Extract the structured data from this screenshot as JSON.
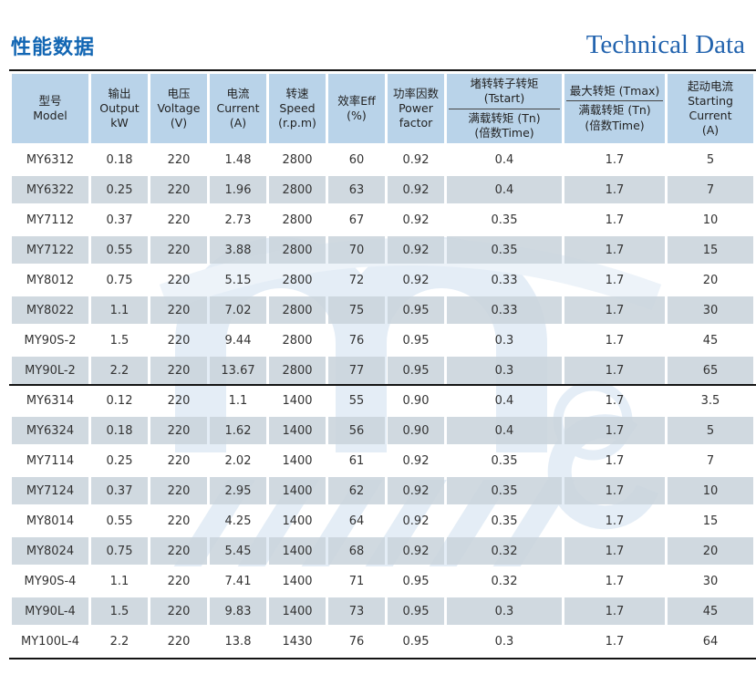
{
  "page": {
    "title_zh": "性能数据",
    "title_en": "Technical Data"
  },
  "colors": {
    "title_blue_zh": "#1266b3",
    "title_blue_en": "#2263ae",
    "header_bg": "#b9d3e9",
    "row_alt_bg": "#c9d4dc",
    "border_dark": "#141414",
    "watermark_blue": "#dce8f4"
  },
  "table": {
    "headers": [
      {
        "lines": [
          "型号",
          "Model"
        ]
      },
      {
        "lines": [
          "输出",
          "Output",
          "kW"
        ]
      },
      {
        "lines": [
          "电压",
          "Voltage",
          "(V)"
        ]
      },
      {
        "lines": [
          "电流",
          "Current",
          "(A)"
        ]
      },
      {
        "lines": [
          "转速",
          "Speed",
          "(r.p.m)"
        ]
      },
      {
        "lines": [
          "效率Eff",
          "(%)"
        ]
      },
      {
        "lines": [
          "功率因数",
          "Power",
          "factor"
        ]
      },
      {
        "fraction": {
          "numerator": "堵转转子转矩 (Tstart)",
          "denominator": "满载转矩 (Tn)",
          "note": "(倍数Time)"
        }
      },
      {
        "fraction": {
          "numerator": "最大转矩 (Tmax)",
          "denominator": "满载转矩 (Tn)",
          "note": "(倍数Time)"
        }
      },
      {
        "lines": [
          "起动电流",
          "Starting",
          "Current",
          "(A)"
        ]
      }
    ],
    "group_break_after_row": 8,
    "rows": [
      [
        "MY6312",
        "0.18",
        "220",
        "1.48",
        "2800",
        "60",
        "0.92",
        "0.4",
        "1.7",
        "5"
      ],
      [
        "MY6322",
        "0.25",
        "220",
        "1.96",
        "2800",
        "63",
        "0.92",
        "0.4",
        "1.7",
        "7"
      ],
      [
        "MY7112",
        "0.37",
        "220",
        "2.73",
        "2800",
        "67",
        "0.92",
        "0.35",
        "1.7",
        "10"
      ],
      [
        "MY7122",
        "0.55",
        "220",
        "3.88",
        "2800",
        "70",
        "0.92",
        "0.35",
        "1.7",
        "15"
      ],
      [
        "MY8012",
        "0.75",
        "220",
        "5.15",
        "2800",
        "72",
        "0.92",
        "0.33",
        "1.7",
        "20"
      ],
      [
        "MY8022",
        "1.1",
        "220",
        "7.02",
        "2800",
        "75",
        "0.95",
        "0.33",
        "1.7",
        "30"
      ],
      [
        "MY90S-2",
        "1.5",
        "220",
        "9.44",
        "2800",
        "76",
        "0.95",
        "0.3",
        "1.7",
        "45"
      ],
      [
        "MY90L-2",
        "2.2",
        "220",
        "13.67",
        "2800",
        "77",
        "0.95",
        "0.3",
        "1.7",
        "65"
      ],
      [
        "MY6314",
        "0.12",
        "220",
        "1.1",
        "1400",
        "55",
        "0.90",
        "0.4",
        "1.7",
        "3.5"
      ],
      [
        "MY6324",
        "0.18",
        "220",
        "1.62",
        "1400",
        "56",
        "0.90",
        "0.4",
        "1.7",
        "5"
      ],
      [
        "MY7114",
        "0.25",
        "220",
        "2.02",
        "1400",
        "61",
        "0.92",
        "0.35",
        "1.7",
        "7"
      ],
      [
        "MY7124",
        "0.37",
        "220",
        "2.95",
        "1400",
        "62",
        "0.92",
        "0.35",
        "1.7",
        "10"
      ],
      [
        "MY8014",
        "0.55",
        "220",
        "4.25",
        "1400",
        "64",
        "0.92",
        "0.35",
        "1.7",
        "15"
      ],
      [
        "MY8024",
        "0.75",
        "220",
        "5.45",
        "1400",
        "68",
        "0.92",
        "0.32",
        "1.7",
        "20"
      ],
      [
        "MY90S-4",
        "1.1",
        "220",
        "7.41",
        "1400",
        "71",
        "0.95",
        "0.32",
        "1.7",
        "30"
      ],
      [
        "MY90L-4",
        "1.5",
        "220",
        "9.83",
        "1400",
        "73",
        "0.95",
        "0.3",
        "1.7",
        "45"
      ],
      [
        "MY100L-4",
        "2.2",
        "220",
        "13.8",
        "1430",
        "76",
        "0.95",
        "0.3",
        "1.7",
        "64"
      ]
    ]
  }
}
